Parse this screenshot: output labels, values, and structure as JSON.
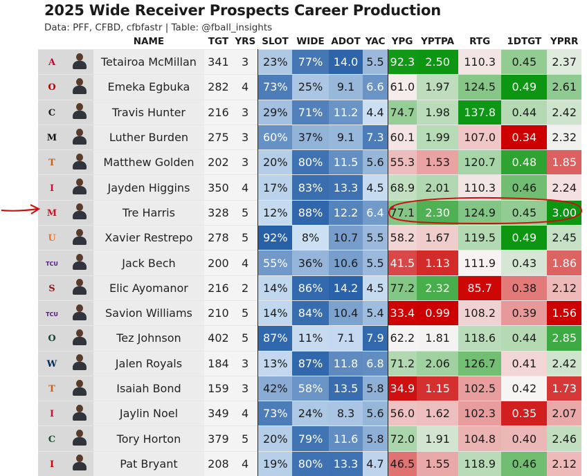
{
  "header": {
    "title": "2025 Wide Receiver Prospects Career Production",
    "subtitle": "Data: PFF, CFBD, cfbfastr | Table: @fball_insights"
  },
  "columns": [
    "",
    "",
    "NAME",
    "TGT",
    "YRS",
    "SLOT",
    "WIDE",
    "ADOT",
    "YAC",
    "YPG",
    "YPTPA",
    "RTG",
    "1DTGT",
    "YPRR"
  ],
  "rows": [
    {
      "logo": {
        "text": "A",
        "color": "#cc0033"
      },
      "name": "Tetairoa McMillan",
      "tgt": "341",
      "yrs": "3",
      "slot": "23%",
      "wide": "77%",
      "adot": "14.0",
      "yac": "5.5",
      "ypg": "92.3",
      "yptpa": "2.50",
      "rtg": "110.3",
      "dtgt": "0.45",
      "yprr": "2.37"
    },
    {
      "logo": {
        "text": "O",
        "color": "#bb0000"
      },
      "name": "Emeka Egbuka",
      "tgt": "282",
      "yrs": "4",
      "slot": "73%",
      "wide": "25%",
      "adot": "9.1",
      "yac": "6.6",
      "ypg": "61.0",
      "yptpa": "1.97",
      "rtg": "124.5",
      "dtgt": "0.49",
      "yprr": "2.61"
    },
    {
      "logo": {
        "text": "C",
        "color": "#1a1a1a"
      },
      "name": "Travis Hunter",
      "tgt": "216",
      "yrs": "3",
      "slot": "29%",
      "wide": "71%",
      "adot": "11.2",
      "yac": "4.4",
      "ypg": "74.7",
      "yptpa": "1.98",
      "rtg": "137.8",
      "dtgt": "0.44",
      "yprr": "2.42"
    },
    {
      "logo": {
        "text": "M",
        "color": "#111111"
      },
      "name": "Luther Burden",
      "tgt": "275",
      "yrs": "3",
      "slot": "60%",
      "wide": "37%",
      "adot": "9.1",
      "yac": "7.3",
      "ypg": "60.1",
      "yptpa": "1.99",
      "rtg": "107.0",
      "dtgt": "0.34",
      "yprr": "2.32"
    },
    {
      "logo": {
        "text": "T",
        "color": "#c7611b"
      },
      "name": "Matthew Golden",
      "tgt": "202",
      "yrs": "3",
      "slot": "20%",
      "wide": "80%",
      "adot": "11.5",
      "yac": "5.6",
      "ypg": "55.3",
      "yptpa": "1.53",
      "rtg": "120.7",
      "dtgt": "0.48",
      "yprr": "1.85"
    },
    {
      "logo": {
        "text": "I",
        "color": "#c8102e"
      },
      "name": "Jayden Higgins",
      "tgt": "350",
      "yrs": "4",
      "slot": "17%",
      "wide": "83%",
      "adot": "13.3",
      "yac": "4.5",
      "ypg": "68.9",
      "yptpa": "2.01",
      "rtg": "110.3",
      "dtgt": "0.46",
      "yprr": "2.24"
    },
    {
      "logo": {
        "text": "M",
        "color": "#ce1126"
      },
      "name": "Tre Harris",
      "tgt": "328",
      "yrs": "5",
      "slot": "12%",
      "wide": "88%",
      "adot": "12.2",
      "yac": "6.4",
      "ypg": "77.1",
      "yptpa": "2.30",
      "rtg": "124.9",
      "dtgt": "0.45",
      "yprr": "3.00"
    },
    {
      "logo": {
        "text": "U",
        "color": "#f47321"
      },
      "name": "Xavier Restrepo",
      "tgt": "278",
      "yrs": "5",
      "slot": "92%",
      "wide": "8%",
      "adot": "10.7",
      "yac": "5.5",
      "ypg": "58.2",
      "yptpa": "1.67",
      "rtg": "119.5",
      "dtgt": "0.49",
      "yprr": "2.45"
    },
    {
      "logo": {
        "text": "TCU",
        "color": "#4d1979"
      },
      "name": "Jack Bech",
      "tgt": "200",
      "yrs": "4",
      "slot": "55%",
      "wide": "36%",
      "adot": "10.6",
      "yac": "5.5",
      "ypg": "41.5",
      "yptpa": "1.13",
      "rtg": "111.9",
      "dtgt": "0.43",
      "yprr": "1.86"
    },
    {
      "logo": {
        "text": "S",
        "color": "#8c1515"
      },
      "name": "Elic Ayomanor",
      "tgt": "216",
      "yrs": "2",
      "slot": "14%",
      "wide": "86%",
      "adot": "14.2",
      "yac": "4.5",
      "ypg": "77.2",
      "yptpa": "2.32",
      "rtg": "85.7",
      "dtgt": "0.38",
      "yprr": "2.12"
    },
    {
      "logo": {
        "text": "TCU",
        "color": "#4d1979"
      },
      "name": "Savion Williams",
      "tgt": "210",
      "yrs": "5",
      "slot": "14%",
      "wide": "84%",
      "adot": "10.4",
      "yac": "5.4",
      "ypg": "33.4",
      "yptpa": "0.99",
      "rtg": "108.2",
      "dtgt": "0.39",
      "yprr": "1.56"
    },
    {
      "logo": {
        "text": "O",
        "color": "#154733"
      },
      "name": "Tez Johnson",
      "tgt": "402",
      "yrs": "5",
      "slot": "87%",
      "wide": "11%",
      "adot": "7.1",
      "yac": "7.9",
      "ypg": "62.2",
      "yptpa": "1.81",
      "rtg": "118.6",
      "dtgt": "0.44",
      "yprr": "2.85"
    },
    {
      "logo": {
        "text": "W",
        "color": "#002b5c"
      },
      "name": "Jalen Royals",
      "tgt": "184",
      "yrs": "3",
      "slot": "13%",
      "wide": "87%",
      "adot": "11.8",
      "yac": "6.8",
      "ypg": "71.2",
      "yptpa": "2.06",
      "rtg": "126.7",
      "dtgt": "0.41",
      "yprr": "2.42"
    },
    {
      "logo": {
        "text": "T",
        "color": "#c7611b"
      },
      "name": "Isaiah Bond",
      "tgt": "159",
      "yrs": "3",
      "slot": "42%",
      "wide": "58%",
      "adot": "13.5",
      "yac": "5.8",
      "ypg": "34.9",
      "yptpa": "1.15",
      "rtg": "102.5",
      "dtgt": "0.42",
      "yprr": "1.73"
    },
    {
      "logo": {
        "text": "I",
        "color": "#c8102e"
      },
      "name": "Jaylin Noel",
      "tgt": "349",
      "yrs": "4",
      "slot": "73%",
      "wide": "24%",
      "adot": "8.3",
      "yac": "5.6",
      "ypg": "56.0",
      "yptpa": "1.62",
      "rtg": "102.3",
      "dtgt": "0.35",
      "yprr": "2.07"
    },
    {
      "logo": {
        "text": "C",
        "color": "#1e4d2b"
      },
      "name": "Tory Horton",
      "tgt": "379",
      "yrs": "5",
      "slot": "20%",
      "wide": "79%",
      "adot": "11.6",
      "yac": "5.8",
      "ypg": "72.0",
      "yptpa": "1.91",
      "rtg": "104.8",
      "dtgt": "0.40",
      "yprr": "2.46"
    },
    {
      "logo": {
        "text": "I",
        "color": "#cc0000"
      },
      "name": "Pat Bryant",
      "tgt": "208",
      "yrs": "4",
      "slot": "19%",
      "wide": "80%",
      "adot": "13.3",
      "yac": "4.7",
      "ypg": "46.5",
      "yptpa": "1.55",
      "rtg": "118.9",
      "dtgt": "0.46",
      "yprr": "2.12"
    }
  ],
  "annotation": {
    "highlighted_row": "Tre Harris",
    "color": "#cc1111"
  }
}
